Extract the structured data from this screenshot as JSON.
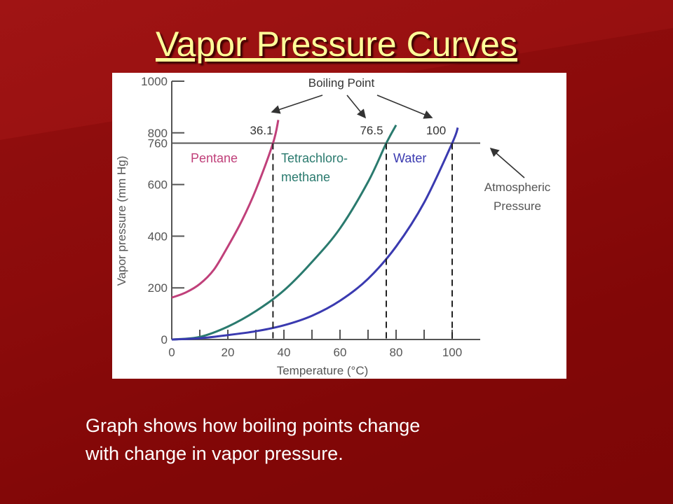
{
  "slide": {
    "title": "Vapor Pressure Curves",
    "caption_lines": [
      "Graph shows how boiling points change",
      "with change in vapor pressure."
    ]
  },
  "colors": {
    "background": "#8e0d0d",
    "title": "#ffff99",
    "pentane": "#c0407a",
    "tetrachloromethane": "#2a7a6e",
    "water": "#3a3ab0",
    "reference": "#555555"
  },
  "chart_data": {
    "type": "line",
    "xlabel": "Temperature (°C)",
    "ylabel": "Vapor pressure (mm Hg)",
    "xlim": [
      0,
      110
    ],
    "ylim": [
      0,
      1000
    ],
    "xticks": [
      0,
      20,
      40,
      60,
      80,
      100
    ],
    "yticks": [
      0,
      200,
      400,
      600,
      760,
      800,
      1000
    ],
    "grid": false,
    "series": [
      {
        "name": "Pentane",
        "color": "#c0407a",
        "x": [
          0,
          5,
          10,
          15,
          20,
          25,
          30,
          36.1,
          38
        ],
        "y": [
          162,
          182,
          215,
          270,
          360,
          460,
          580,
          760,
          850
        ]
      },
      {
        "name": "Tetrachloro-\nmethane",
        "color": "#2a7a6e",
        "x": [
          0,
          10,
          20,
          30,
          40,
          50,
          60,
          70,
          76.5,
          80
        ],
        "y": [
          0,
          10,
          50,
          110,
          190,
          300,
          430,
          610,
          760,
          830
        ]
      },
      {
        "name": "Water",
        "color": "#3a3ab0",
        "x": [
          0,
          10,
          20,
          30,
          40,
          50,
          60,
          70,
          80,
          90,
          100,
          102
        ],
        "y": [
          0,
          5,
          17,
          32,
          55,
          92,
          150,
          235,
          360,
          530,
          760,
          820
        ]
      }
    ],
    "reference_line": {
      "y": 760,
      "label_lines": [
        "Atmospheric",
        "Pressure"
      ]
    },
    "boiling_points": [
      {
        "x": 36.1,
        "label": "36.1"
      },
      {
        "x": 76.5,
        "label": "76.5"
      },
      {
        "x": 100,
        "label": "100"
      }
    ],
    "annotation": "Boiling Point"
  }
}
